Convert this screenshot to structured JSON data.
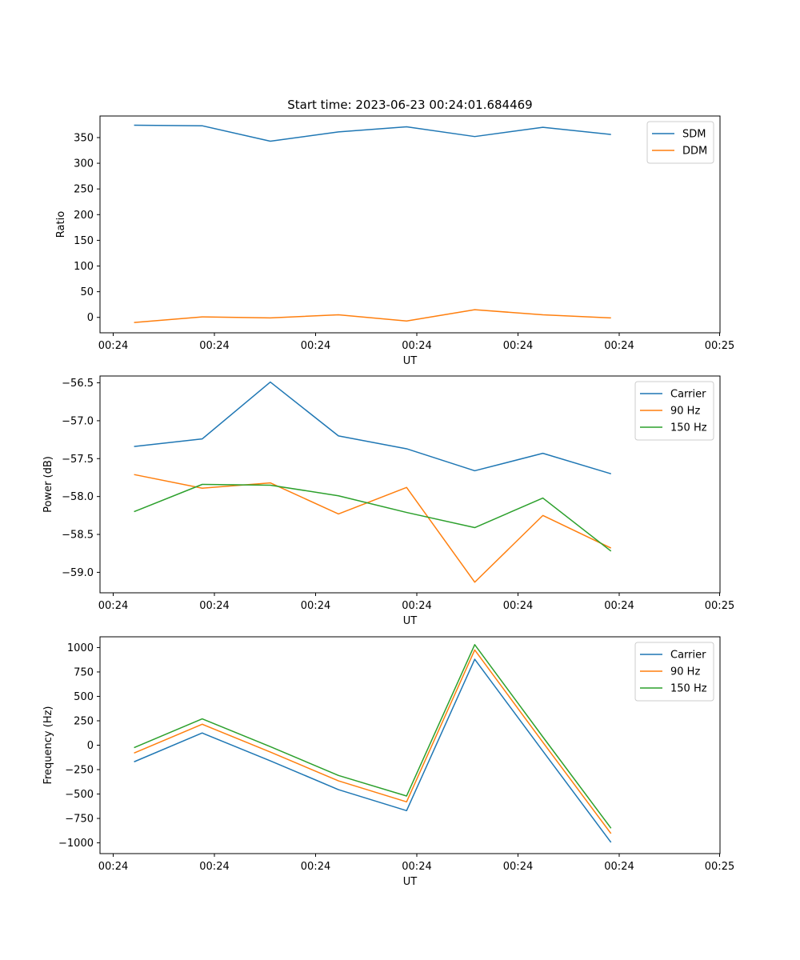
{
  "figure": {
    "title": "Start time: 2023-06-23 00:24:01.684469"
  },
  "chart_data": [
    {
      "type": "line",
      "xlabel": "UT",
      "ylabel": "Ratio",
      "x_tick_labels": [
        "00:24",
        "00:24",
        "00:24",
        "00:24",
        "00:24",
        "00:24",
        "00:25"
      ],
      "xlim": [
        -0.5,
        8.6
      ],
      "ylim": [
        -30,
        392
      ],
      "y_ticks": [
        0,
        50,
        100,
        150,
        200,
        250,
        300,
        350
      ],
      "y_tick_labels": [
        "0",
        "50",
        "100",
        "150",
        "200",
        "250",
        "300",
        "350"
      ],
      "legend_position": "top-right",
      "series": [
        {
          "name": "SDM",
          "color": "#1f77b4",
          "values": [
            374,
            373,
            343,
            361,
            371,
            352,
            370,
            356
          ]
        },
        {
          "name": "DDM",
          "color": "#ff7f0e",
          "values": [
            -10,
            1,
            -1,
            5,
            -7,
            15,
            5,
            -1
          ]
        }
      ]
    },
    {
      "type": "line",
      "xlabel": "UT",
      "ylabel": "Power (dB)",
      "x_tick_labels": [
        "00:24",
        "00:24",
        "00:24",
        "00:24",
        "00:24",
        "00:24",
        "00:25"
      ],
      "xlim": [
        -0.5,
        8.6
      ],
      "ylim": [
        -59.27,
        -56.41
      ],
      "y_ticks": [
        -59.0,
        -58.5,
        -58.0,
        -57.5,
        -57.0,
        -56.5
      ],
      "y_tick_labels": [
        "−59.0",
        "−58.5",
        "−58.0",
        "−57.5",
        "−57.0",
        "−56.5"
      ],
      "legend_position": "top-right",
      "series": [
        {
          "name": "Carrier",
          "color": "#1f77b4",
          "values": [
            -57.34,
            -57.24,
            -56.49,
            -57.2,
            -57.37,
            -57.66,
            -57.43,
            -57.7
          ]
        },
        {
          "name": "90 Hz",
          "color": "#ff7f0e",
          "values": [
            -57.71,
            -57.89,
            -57.82,
            -58.23,
            -57.88,
            -59.13,
            -58.25,
            -58.68
          ]
        },
        {
          "name": "150 Hz",
          "color": "#2ca02c",
          "values": [
            -58.2,
            -57.84,
            -57.85,
            -57.99,
            -58.21,
            -58.41,
            -58.02,
            -58.72
          ]
        }
      ]
    },
    {
      "type": "line",
      "xlabel": "UT",
      "ylabel": "Frequency (Hz)",
      "x_tick_labels": [
        "00:24",
        "00:24",
        "00:24",
        "00:24",
        "00:24",
        "00:24",
        "00:25"
      ],
      "xlim": [
        -0.5,
        8.6
      ],
      "ylim": [
        -1110,
        1110
      ],
      "y_ticks": [
        -1000,
        -750,
        -500,
        -250,
        0,
        250,
        500,
        750,
        1000
      ],
      "y_tick_labels": [
        "−1000",
        "−750",
        "−500",
        "−250",
        "0",
        "250",
        "500",
        "750",
        "1000"
      ],
      "legend_position": "top-right",
      "series": [
        {
          "name": "Carrier",
          "color": "#1f77b4",
          "values": [
            -170,
            125,
            -160,
            -455,
            -670,
            880,
            -60,
            -995
          ]
        },
        {
          "name": "90 Hz",
          "color": "#ff7f0e",
          "values": [
            -80,
            215,
            -70,
            -365,
            -580,
            975,
            30,
            -905
          ]
        },
        {
          "name": "150 Hz",
          "color": "#2ca02c",
          "values": [
            -25,
            270,
            -15,
            -310,
            -520,
            1030,
            85,
            -850
          ]
        }
      ]
    }
  ]
}
